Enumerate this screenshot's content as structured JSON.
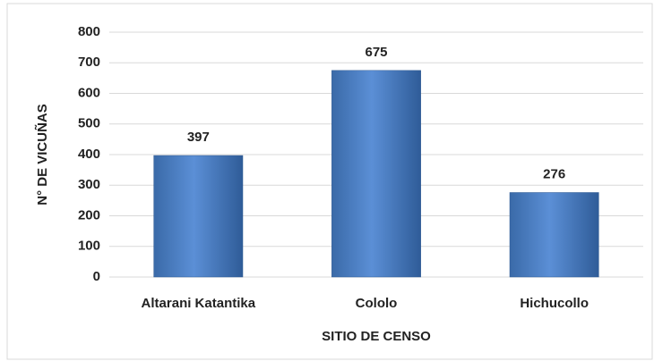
{
  "chart_data": {
    "type": "bar",
    "categories": [
      "Altarani Katantika",
      "Cololo",
      "Hichucollo"
    ],
    "values": [
      397,
      675,
      276
    ],
    "color": "#4a7ebb",
    "xlabel": "SITIO DE CENSO",
    "ylabel": "N° DE VICUÑAS",
    "ylim": [
      0,
      800
    ],
    "yticks": [
      0,
      100,
      200,
      300,
      400,
      500,
      600,
      700,
      800
    ],
    "grid": true
  }
}
